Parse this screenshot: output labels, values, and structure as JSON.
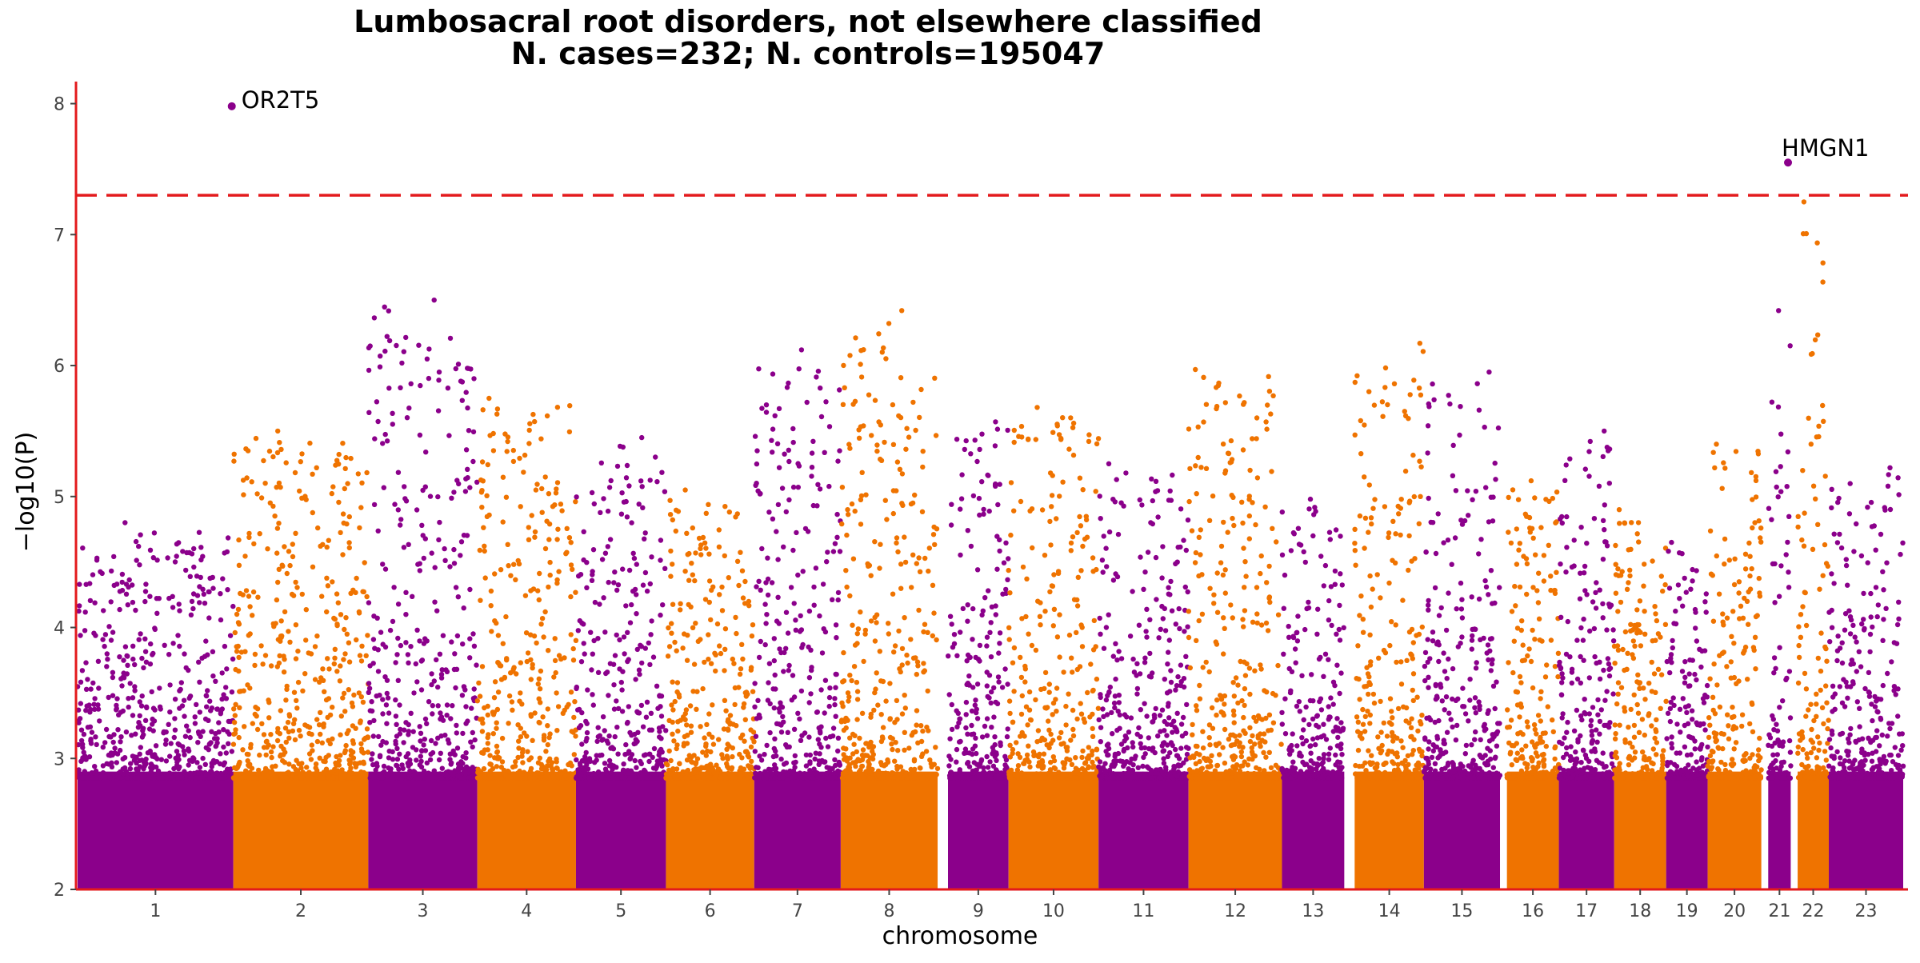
{
  "chart_data": {
    "type": "scatter",
    "subtype": "manhattan",
    "title": "Lumbosacral root disorders, not elsewhere classified",
    "subtitle": "N. cases=232; N. controls=195047",
    "xlabel": "chromosome",
    "ylabel": "−log10(P)",
    "ylim": [
      2,
      8.15
    ],
    "yticks": [
      2,
      3,
      4,
      5,
      6,
      7,
      8
    ],
    "grid": false,
    "significance_threshold": 7.3,
    "colors": {
      "odd": "#8b008b",
      "even": "#ef7300",
      "threshold": "#e31a1c",
      "axis": "#e31a1c"
    },
    "chromosomes": [
      {
        "label": "1",
        "max": 4.8
      },
      {
        "label": "2",
        "max": 5.5
      },
      {
        "label": "3",
        "max": 6.5
      },
      {
        "label": "4",
        "max": 5.75
      },
      {
        "label": "5",
        "max": 5.45
      },
      {
        "label": "6",
        "max": 5.05
      },
      {
        "label": "7",
        "max": 6.12
      },
      {
        "label": "8",
        "max": 6.42
      },
      {
        "label": "9",
        "max": 5.57
      },
      {
        "label": "10",
        "max": 5.68
      },
      {
        "label": "11",
        "max": 5.25
      },
      {
        "label": "12",
        "max": 5.97
      },
      {
        "label": "13",
        "max": 4.98
      },
      {
        "label": "14",
        "max": 6.17
      },
      {
        "label": "15",
        "max": 5.95
      },
      {
        "label": "16",
        "max": 5.12
      },
      {
        "label": "17",
        "max": 5.5
      },
      {
        "label": "18",
        "max": 4.9
      },
      {
        "label": "19",
        "max": 4.65
      },
      {
        "label": "20",
        "max": 5.4
      },
      {
        "label": "21",
        "max": 6.42
      },
      {
        "label": "22",
        "max": 7.25
      },
      {
        "label": "23",
        "max": 5.22
      }
    ],
    "top_hits": [
      {
        "label": "OR2T5",
        "chromosome": "1",
        "position": 0.99,
        "y": 7.98
      },
      {
        "label": "HMGN1",
        "chromosome": "21",
        "position": 0.88,
        "y": 7.55
      }
    ]
  }
}
